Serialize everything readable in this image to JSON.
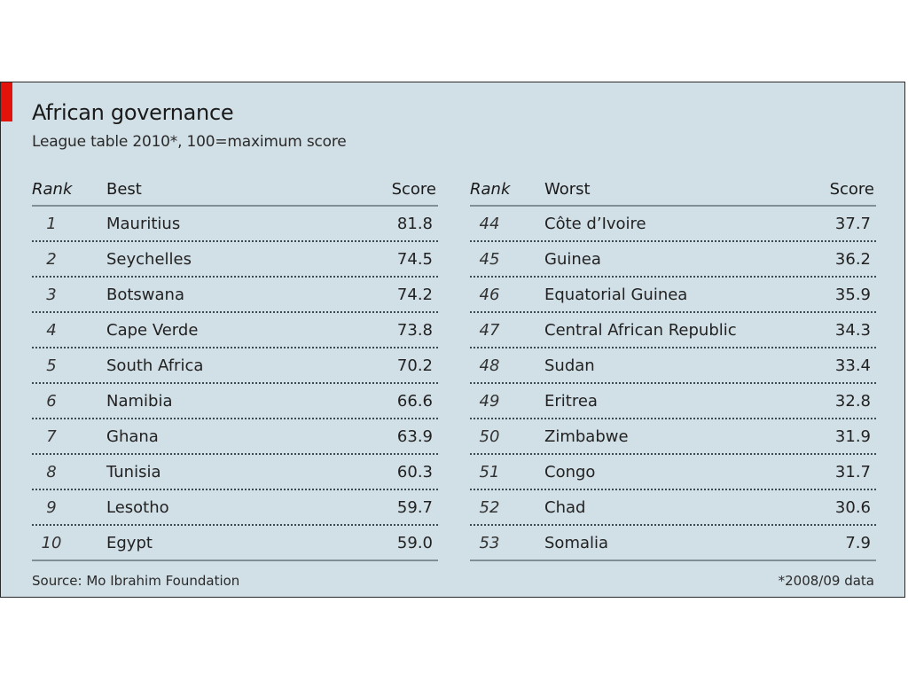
{
  "chart_data": {
    "type": "table",
    "title": "African governance",
    "subtitle": "League table 2010*, 100=maximum score",
    "columns": {
      "best": {
        "rank": "Rank",
        "name": "Best",
        "score": "Score"
      },
      "worst": {
        "rank": "Rank",
        "name": "Worst",
        "score": "Score"
      }
    },
    "best": [
      {
        "rank": "1",
        "country": "Mauritius",
        "score": "81.8"
      },
      {
        "rank": "2",
        "country": "Seychelles",
        "score": "74.5"
      },
      {
        "rank": "3",
        "country": "Botswana",
        "score": "74.2"
      },
      {
        "rank": "4",
        "country": "Cape Verde",
        "score": "73.8"
      },
      {
        "rank": "5",
        "country": "South Africa",
        "score": "70.2"
      },
      {
        "rank": "6",
        "country": "Namibia",
        "score": "66.6"
      },
      {
        "rank": "7",
        "country": "Ghana",
        "score": "63.9"
      },
      {
        "rank": "8",
        "country": "Tunisia",
        "score": "60.3"
      },
      {
        "rank": "9",
        "country": "Lesotho",
        "score": "59.7"
      },
      {
        "rank": "10",
        "country": "Egypt",
        "score": "59.0"
      }
    ],
    "worst": [
      {
        "rank": "44",
        "country": "Côte d’Ivoire",
        "score": "37.7"
      },
      {
        "rank": "45",
        "country": "Guinea",
        "score": "36.2"
      },
      {
        "rank": "46",
        "country": "Equatorial Guinea",
        "score": "35.9"
      },
      {
        "rank": "47",
        "country": "Central African Republic",
        "score": "34.3"
      },
      {
        "rank": "48",
        "country": "Sudan",
        "score": "33.4"
      },
      {
        "rank": "49",
        "country": "Eritrea",
        "score": "32.8"
      },
      {
        "rank": "50",
        "country": "Zimbabwe",
        "score": "31.9"
      },
      {
        "rank": "51",
        "country": "Congo",
        "score": "31.7"
      },
      {
        "rank": "52",
        "country": "Chad",
        "score": "30.6"
      },
      {
        "rank": "53",
        "country": "Somalia",
        "score": "7.9"
      }
    ],
    "source": "Source: Mo Ibrahim Foundation",
    "footnote": "*2008/09 data"
  },
  "colors": {
    "background": "#d1dfe6",
    "accent": "#e3120b"
  }
}
